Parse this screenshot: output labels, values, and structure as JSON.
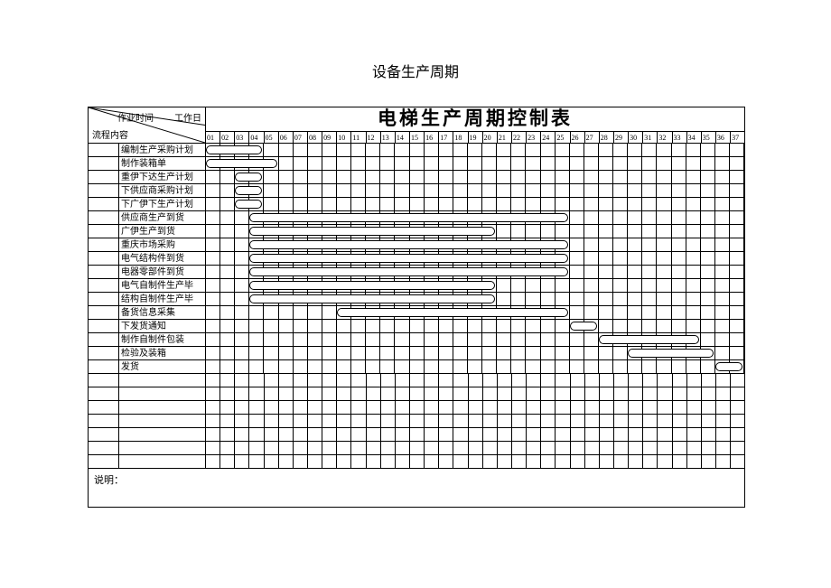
{
  "page_title": "设备生产周期",
  "chart_title": "电梯生产周期控制表",
  "header": {
    "top_label": "作业时间",
    "right_label": "工作日",
    "bottom_label": "流程内容"
  },
  "days": [
    "01",
    "02",
    "03",
    "04",
    "05",
    "06",
    "07",
    "08",
    "09",
    "10",
    "11",
    "12",
    "13",
    "14",
    "15",
    "16",
    "17",
    "18",
    "19",
    "20",
    "21",
    "22",
    "23",
    "24",
    "25",
    "26",
    "27",
    "28",
    "29",
    "30",
    "31",
    "32",
    "33",
    "34",
    "35",
    "36",
    "37"
  ],
  "total_days": 37,
  "tasks": [
    {
      "label": "编制生产采购计划",
      "bar": [
        1,
        4
      ]
    },
    {
      "label": "制作装箱单",
      "bar": [
        1,
        5
      ]
    },
    {
      "label": "重伊下达生产计划",
      "bar": [
        3,
        4
      ]
    },
    {
      "label": "下供应商采购计划",
      "bar": [
        3,
        4
      ]
    },
    {
      "label": "下广伊下生产计划",
      "bar": [
        3,
        4
      ]
    },
    {
      "label": "供应商生产到货",
      "bar": [
        4,
        25
      ]
    },
    {
      "label": "广伊生产到货",
      "bar": [
        4,
        20
      ]
    },
    {
      "label": "重庆市场采购",
      "bar": [
        4,
        25
      ]
    },
    {
      "label": "电气结构件到货",
      "bar": [
        4,
        25
      ]
    },
    {
      "label": "电器零部件到货",
      "bar": [
        4,
        25
      ]
    },
    {
      "label": "电气自制件生产毕",
      "bar": [
        4,
        20
      ]
    },
    {
      "label": "结构自制件生产毕",
      "bar": [
        4,
        20
      ]
    },
    {
      "label": "备货信息采集",
      "bar": [
        10,
        25
      ]
    },
    {
      "label": "下发货通知",
      "bar": [
        26,
        27
      ]
    },
    {
      "label": "制作自制件包装",
      "bar": [
        28,
        34
      ]
    },
    {
      "label": "检验及装箱",
      "bar": [
        30,
        35
      ]
    },
    {
      "label": "发货",
      "bar": [
        36,
        37
      ]
    }
  ],
  "blank_rows": 7,
  "notes_label": "说明：",
  "colors": {
    "border": "#000000",
    "background": "#ffffff",
    "bar_fill": "#ffffff",
    "bar_border": "#000000"
  }
}
